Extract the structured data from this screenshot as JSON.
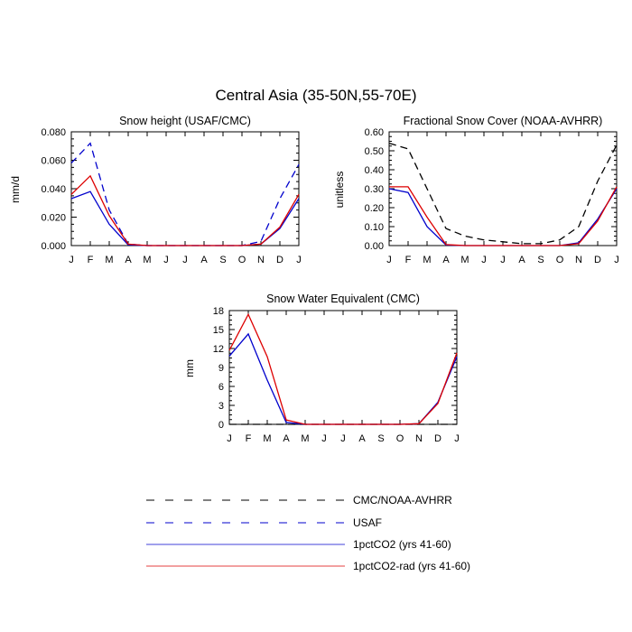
{
  "figure": {
    "title": "Central Asia (35-50N,55-70E)"
  },
  "colors": {
    "dashed_black": "#000000",
    "dashed_blue": "#0000cc",
    "pct_co2": "#0000cc",
    "pct_co2_rad": "#dd0000"
  },
  "chart_data": [
    {
      "type": "line",
      "title": "Snow height (USAF/CMC)",
      "xlabel": "",
      "ylabel": "mm/d",
      "categories": [
        "J",
        "F",
        "M",
        "A",
        "M",
        "J",
        "J",
        "A",
        "S",
        "O",
        "N",
        "D",
        "J"
      ],
      "ylim": [
        0,
        0.08
      ],
      "yticks": [
        "0.000",
        "0.020",
        "0.040",
        "0.060",
        "0.080"
      ],
      "series": [
        {
          "name": "USAF",
          "style": "dashed",
          "color": "#0000cc",
          "values": [
            0.058,
            0.072,
            0.025,
            0.001,
            0,
            0,
            0,
            0,
            0,
            0,
            0.003,
            0.033,
            0.057
          ]
        },
        {
          "name": "1pctCO2 (yrs 41-60)",
          "style": "solid",
          "color": "#0000cc",
          "values": [
            0.033,
            0.038,
            0.015,
            0.0005,
            0,
            0,
            0,
            0,
            0,
            0,
            0.001,
            0.012,
            0.033
          ]
        },
        {
          "name": "1pctCO2-rad (yrs 41-60)",
          "style": "solid",
          "color": "#dd0000",
          "values": [
            0.036,
            0.049,
            0.021,
            0.001,
            0,
            0,
            0,
            0,
            0,
            0,
            0.001,
            0.013,
            0.036
          ]
        }
      ]
    },
    {
      "type": "line",
      "title": "Fractional Snow Cover (NOAA-AVHRR)",
      "xlabel": "",
      "ylabel": "unitless",
      "categories": [
        "J",
        "F",
        "M",
        "A",
        "M",
        "J",
        "J",
        "A",
        "S",
        "O",
        "N",
        "D",
        "J"
      ],
      "ylim": [
        0,
        0.6
      ],
      "yticks": [
        "0.00",
        "0.10",
        "0.20",
        "0.30",
        "0.40",
        "0.50",
        "0.60"
      ],
      "series": [
        {
          "name": "CMC/NOAA-AVHRR",
          "style": "dashed",
          "color": "#000000",
          "values": [
            0.54,
            0.51,
            0.3,
            0.09,
            0.05,
            0.03,
            0.02,
            0.01,
            0.01,
            0.03,
            0.1,
            0.34,
            0.53
          ]
        },
        {
          "name": "1pctCO2 (yrs 41-60)",
          "style": "solid",
          "color": "#0000cc",
          "values": [
            0.3,
            0.28,
            0.1,
            0.003,
            0,
            0,
            0,
            0,
            0,
            0,
            0.015,
            0.14,
            0.3
          ]
        },
        {
          "name": "1pctCO2-rad (yrs 41-60)",
          "style": "solid",
          "color": "#dd0000",
          "values": [
            0.31,
            0.31,
            0.15,
            0.005,
            0,
            0,
            0,
            0,
            0,
            0,
            0.01,
            0.13,
            0.31
          ]
        }
      ]
    },
    {
      "type": "line",
      "title": "Snow Water Equivalent (CMC)",
      "xlabel": "",
      "ylabel": "mm",
      "categories": [
        "J",
        "F",
        "M",
        "A",
        "M",
        "J",
        "J",
        "A",
        "S",
        "O",
        "N",
        "D",
        "J"
      ],
      "ylim": [
        0,
        18
      ],
      "yticks": [
        "0",
        "3",
        "6",
        "9",
        "12",
        "15",
        "18"
      ],
      "series": [
        {
          "name": "CMC/NOAA-AVHRR",
          "style": "dashed",
          "color": "#000000",
          "values": [
            0,
            0,
            0,
            0,
            0,
            0,
            0,
            0,
            0,
            0,
            0,
            0,
            0
          ]
        },
        {
          "name": "1pctCO2 (yrs 41-60)",
          "style": "solid",
          "color": "#0000cc",
          "values": [
            10.8,
            14.3,
            7.0,
            0.3,
            0,
            0,
            0,
            0,
            0,
            0,
            0.1,
            3.5,
            10.7
          ]
        },
        {
          "name": "1pctCO2-rad (yrs 41-60)",
          "style": "solid",
          "color": "#dd0000",
          "values": [
            11.7,
            17.4,
            10.7,
            0.7,
            0,
            0,
            0,
            0,
            0,
            0,
            0.1,
            3.3,
            11.3
          ]
        }
      ]
    }
  ],
  "legend": [
    {
      "label": "CMC/NOAA-AVHRR",
      "style": "dashed",
      "color": "#000000"
    },
    {
      "label": "USAF",
      "style": "dashed",
      "color": "#0000cc"
    },
    {
      "label": "1pctCO2 (yrs 41-60)",
      "style": "solid",
      "color": "#0000cc"
    },
    {
      "label": "1pctCO2-rad (yrs 41-60)",
      "style": "solid",
      "color": "#dd0000"
    }
  ]
}
